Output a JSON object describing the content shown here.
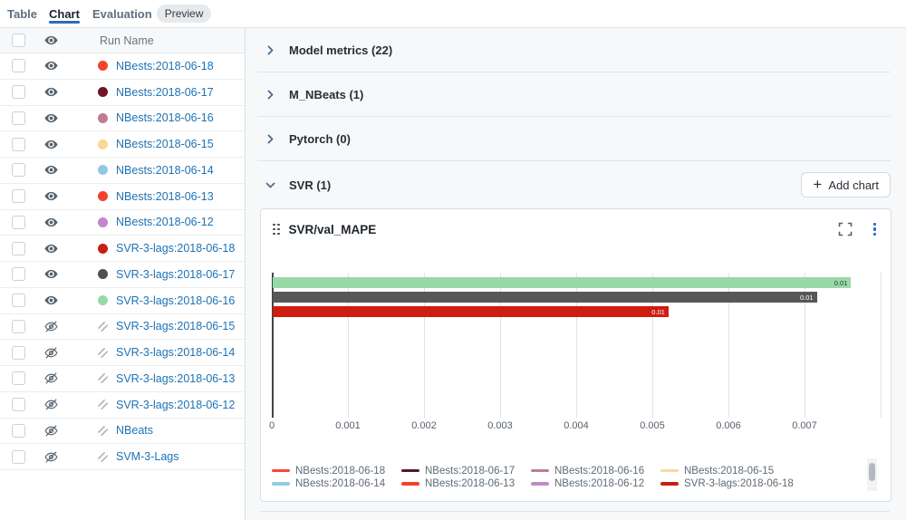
{
  "tabs": {
    "items": [
      {
        "label": "Table",
        "active": false
      },
      {
        "label": "Chart",
        "active": true
      },
      {
        "label": "Evaluation",
        "active": false
      }
    ],
    "badge": "Preview"
  },
  "sidebar": {
    "header": {
      "run_name_label": "Run Name"
    },
    "rows": [
      {
        "name": "NBests:2018-06-18",
        "color": "#f5432e",
        "visible": true
      },
      {
        "name": "NBests:2018-06-17",
        "color": "#6e1528",
        "visible": true
      },
      {
        "name": "NBests:2018-06-16",
        "color": "#c07b8e",
        "visible": true
      },
      {
        "name": "NBests:2018-06-15",
        "color": "#fbd795",
        "visible": true
      },
      {
        "name": "NBests:2018-06-14",
        "color": "#8fc9e4",
        "visible": true
      },
      {
        "name": "NBests:2018-06-13",
        "color": "#f5402c",
        "visible": true
      },
      {
        "name": "NBests:2018-06-12",
        "color": "#c585cf",
        "visible": true
      },
      {
        "name": "SVR-3-lags:2018-06-18",
        "color": "#c62011",
        "visible": true
      },
      {
        "name": "SVR-3-lags:2018-06-17",
        "color": "#4f4f4f",
        "visible": true
      },
      {
        "name": "SVR-3-lags:2018-06-16",
        "color": "#98d9a9",
        "visible": true
      },
      {
        "name": "SVR-3-lags:2018-06-15",
        "color": null,
        "visible": false
      },
      {
        "name": "SVR-3-lags:2018-06-14",
        "color": null,
        "visible": false
      },
      {
        "name": "SVR-3-lags:2018-06-13",
        "color": null,
        "visible": false
      },
      {
        "name": "SVR-3-lags:2018-06-12",
        "color": null,
        "visible": false
      },
      {
        "name": "NBeats",
        "color": null,
        "visible": false
      },
      {
        "name": "SVM-3-Lags",
        "color": null,
        "visible": false
      }
    ]
  },
  "sections": [
    {
      "label": "Model metrics (22)",
      "collapsed": true
    },
    {
      "label": "M_NBeats (1)",
      "collapsed": true
    },
    {
      "label": "Pytorch (0)",
      "collapsed": true
    },
    {
      "label": "SVR (1)",
      "collapsed": false
    }
  ],
  "add_chart_label": "Add chart",
  "chart_card": {
    "title": "SVR/val_MAPE"
  },
  "chart_data": {
    "type": "bar",
    "orientation": "horizontal",
    "title": "SVR/val_MAPE",
    "xlim": [
      0,
      0.008
    ],
    "x_ticks": [
      "0",
      "0.001",
      "0.002",
      "0.003",
      "0.004",
      "0.005",
      "0.006",
      "0.007"
    ],
    "gridline_count": 9,
    "series": [
      {
        "run": "SVR-3-lags:2018-06-16",
        "value": 0.0076,
        "label": "0.01",
        "color": "#98d9a9",
        "label_color": "#333333"
      },
      {
        "run": "SVR-3-lags:2018-06-17",
        "value": 0.00715,
        "label": "0.01",
        "color": "#575757",
        "label_color": "#ffffff"
      },
      {
        "run": "SVR-3-lags:2018-06-18",
        "value": 0.0052,
        "label": "0.01",
        "color": "#cf1d10",
        "label_color": "#ffffff"
      }
    ],
    "legend_position": "bottom",
    "legend": [
      {
        "name": "NBests:2018-06-18",
        "color": "#f44935"
      },
      {
        "name": "NBests:2018-06-17",
        "color": "#5c1528"
      },
      {
        "name": "NBests:2018-06-16",
        "color": "#bb7f90"
      },
      {
        "name": "NBests:2018-06-15",
        "color": "#f8dba0"
      },
      {
        "name": "NBests:2018-06-14",
        "color": "#92cbe2"
      },
      {
        "name": "NBests:2018-06-13",
        "color": "#f5402c"
      },
      {
        "name": "NBests:2018-06-12",
        "color": "#bf8bca"
      },
      {
        "name": "SVR-3-lags:2018-06-18",
        "color": "#c62011"
      }
    ]
  }
}
